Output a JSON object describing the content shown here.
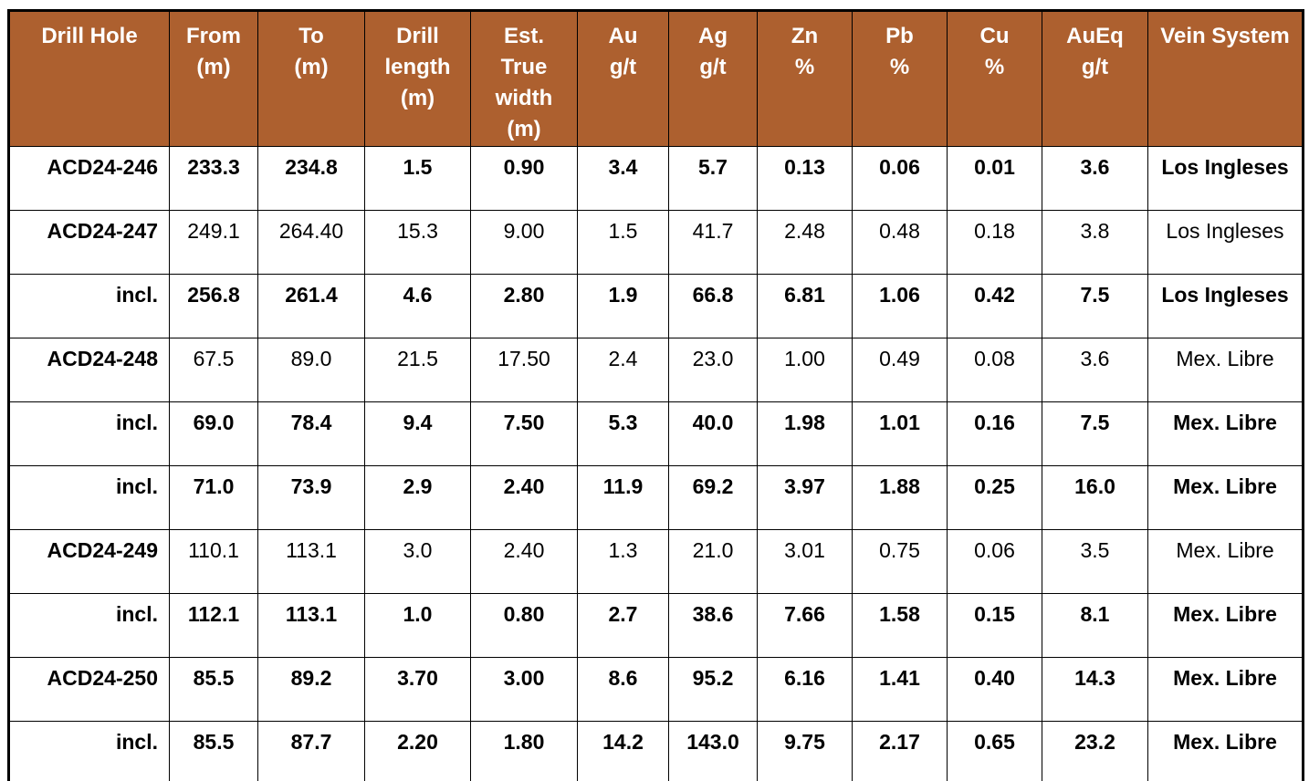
{
  "table": {
    "header_bg": "#AD602F",
    "header_text_color": "#FFFFFF",
    "grid_color": "#000000",
    "columns": [
      {
        "id": "drill-hole",
        "label": "Drill Hole"
      },
      {
        "id": "from-m",
        "label": "From\n(m)"
      },
      {
        "id": "to-m",
        "label": "To\n(m)"
      },
      {
        "id": "drill-length-m",
        "label": "Drill\nlength\n(m)"
      },
      {
        "id": "est-true-width-m",
        "label": "Est.\nTrue\nwidth\n(m)"
      },
      {
        "id": "au-gt",
        "label": "Au\ng/t"
      },
      {
        "id": "ag-gt",
        "label": "Ag\ng/t"
      },
      {
        "id": "zn-pct",
        "label": "Zn\n%"
      },
      {
        "id": "pb-pct",
        "label": "Pb\n%"
      },
      {
        "id": "cu-pct",
        "label": "Cu\n%"
      },
      {
        "id": "aueq-gt",
        "label": "AuEq\ng/t"
      },
      {
        "id": "vein-system",
        "label": "Vein System"
      }
    ],
    "rows": [
      {
        "bold": true,
        "cells": [
          "ACD24-246",
          "233.3",
          "234.8",
          "1.5",
          "0.90",
          "3.4",
          "5.7",
          "0.13",
          "0.06",
          "0.01",
          "3.6",
          "Los Ingleses"
        ]
      },
      {
        "bold": false,
        "cells": [
          "ACD24-247",
          "249.1",
          "264.40",
          "15.3",
          "9.00",
          "1.5",
          "41.7",
          "2.48",
          "0.48",
          "0.18",
          "3.8",
          "Los Ingleses"
        ]
      },
      {
        "bold": true,
        "cells": [
          "incl.",
          "256.8",
          "261.4",
          "4.6",
          "2.80",
          "1.9",
          "66.8",
          "6.81",
          "1.06",
          "0.42",
          "7.5",
          "Los Ingleses"
        ]
      },
      {
        "bold": false,
        "cells": [
          "ACD24-248",
          "67.5",
          "89.0",
          "21.5",
          "17.50",
          "2.4",
          "23.0",
          "1.00",
          "0.49",
          "0.08",
          "3.6",
          "Mex. Libre"
        ]
      },
      {
        "bold": true,
        "cells": [
          "incl.",
          "69.0",
          "78.4",
          "9.4",
          "7.50",
          "5.3",
          "40.0",
          "1.98",
          "1.01",
          "0.16",
          "7.5",
          "Mex. Libre"
        ]
      },
      {
        "bold": true,
        "cells": [
          "incl.",
          "71.0",
          "73.9",
          "2.9",
          "2.40",
          "11.9",
          "69.2",
          "3.97",
          "1.88",
          "0.25",
          "16.0",
          "Mex. Libre"
        ]
      },
      {
        "bold": false,
        "cells": [
          "ACD24-249",
          "110.1",
          "113.1",
          "3.0",
          "2.40",
          "1.3",
          "21.0",
          "3.01",
          "0.75",
          "0.06",
          "3.5",
          "Mex. Libre"
        ]
      },
      {
        "bold": true,
        "cells": [
          "incl.",
          "112.1",
          "113.1",
          "1.0",
          "0.80",
          "2.7",
          "38.6",
          "7.66",
          "1.58",
          "0.15",
          "8.1",
          "Mex. Libre"
        ]
      },
      {
        "bold": true,
        "cells": [
          "ACD24-250",
          "85.5",
          "89.2",
          "3.70",
          "3.00",
          "8.6",
          "95.2",
          "6.16",
          "1.41",
          "0.40",
          "14.3",
          "Mex. Libre"
        ]
      },
      {
        "bold": true,
        "cells": [
          "incl.",
          "85.5",
          "87.7",
          "2.20",
          "1.80",
          "14.2",
          "143.0",
          "9.75",
          "2.17",
          "0.65",
          "23.2",
          "Mex. Libre"
        ]
      }
    ]
  },
  "chart_data": {
    "type": "table",
    "title": "Drill hole assay intercepts",
    "columns": [
      "Drill Hole",
      "From (m)",
      "To (m)",
      "Drill length (m)",
      "Est. True width (m)",
      "Au g/t",
      "Ag g/t",
      "Zn %",
      "Pb %",
      "Cu %",
      "AuEq g/t",
      "Vein System"
    ],
    "rows": [
      [
        "ACD24-246",
        233.3,
        234.8,
        1.5,
        0.9,
        3.4,
        5.7,
        0.13,
        0.06,
        0.01,
        3.6,
        "Los Ingleses"
      ],
      [
        "ACD24-247",
        249.1,
        264.4,
        15.3,
        9.0,
        1.5,
        41.7,
        2.48,
        0.48,
        0.18,
        3.8,
        "Los Ingleses"
      ],
      [
        "incl.",
        256.8,
        261.4,
        4.6,
        2.8,
        1.9,
        66.8,
        6.81,
        1.06,
        0.42,
        7.5,
        "Los Ingleses"
      ],
      [
        "ACD24-248",
        67.5,
        89.0,
        21.5,
        17.5,
        2.4,
        23.0,
        1.0,
        0.49,
        0.08,
        3.6,
        "Mex. Libre"
      ],
      [
        "incl.",
        69.0,
        78.4,
        9.4,
        7.5,
        5.3,
        40.0,
        1.98,
        1.01,
        0.16,
        7.5,
        "Mex. Libre"
      ],
      [
        "incl.",
        71.0,
        73.9,
        2.9,
        2.4,
        11.9,
        69.2,
        3.97,
        1.88,
        0.25,
        16.0,
        "Mex. Libre"
      ],
      [
        "ACD24-249",
        110.1,
        113.1,
        3.0,
        2.4,
        1.3,
        21.0,
        3.01,
        0.75,
        0.06,
        3.5,
        "Mex. Libre"
      ],
      [
        "incl.",
        112.1,
        113.1,
        1.0,
        0.8,
        2.7,
        38.6,
        7.66,
        1.58,
        0.15,
        8.1,
        "Mex. Libre"
      ],
      [
        "ACD24-250",
        85.5,
        89.2,
        3.7,
        3.0,
        8.6,
        95.2,
        6.16,
        1.41,
        0.4,
        14.3,
        "Mex. Libre"
      ],
      [
        "incl.",
        85.5,
        87.7,
        2.2,
        1.8,
        14.2,
        143.0,
        9.75,
        2.17,
        0.65,
        23.2,
        "Mex. Libre"
      ]
    ]
  }
}
